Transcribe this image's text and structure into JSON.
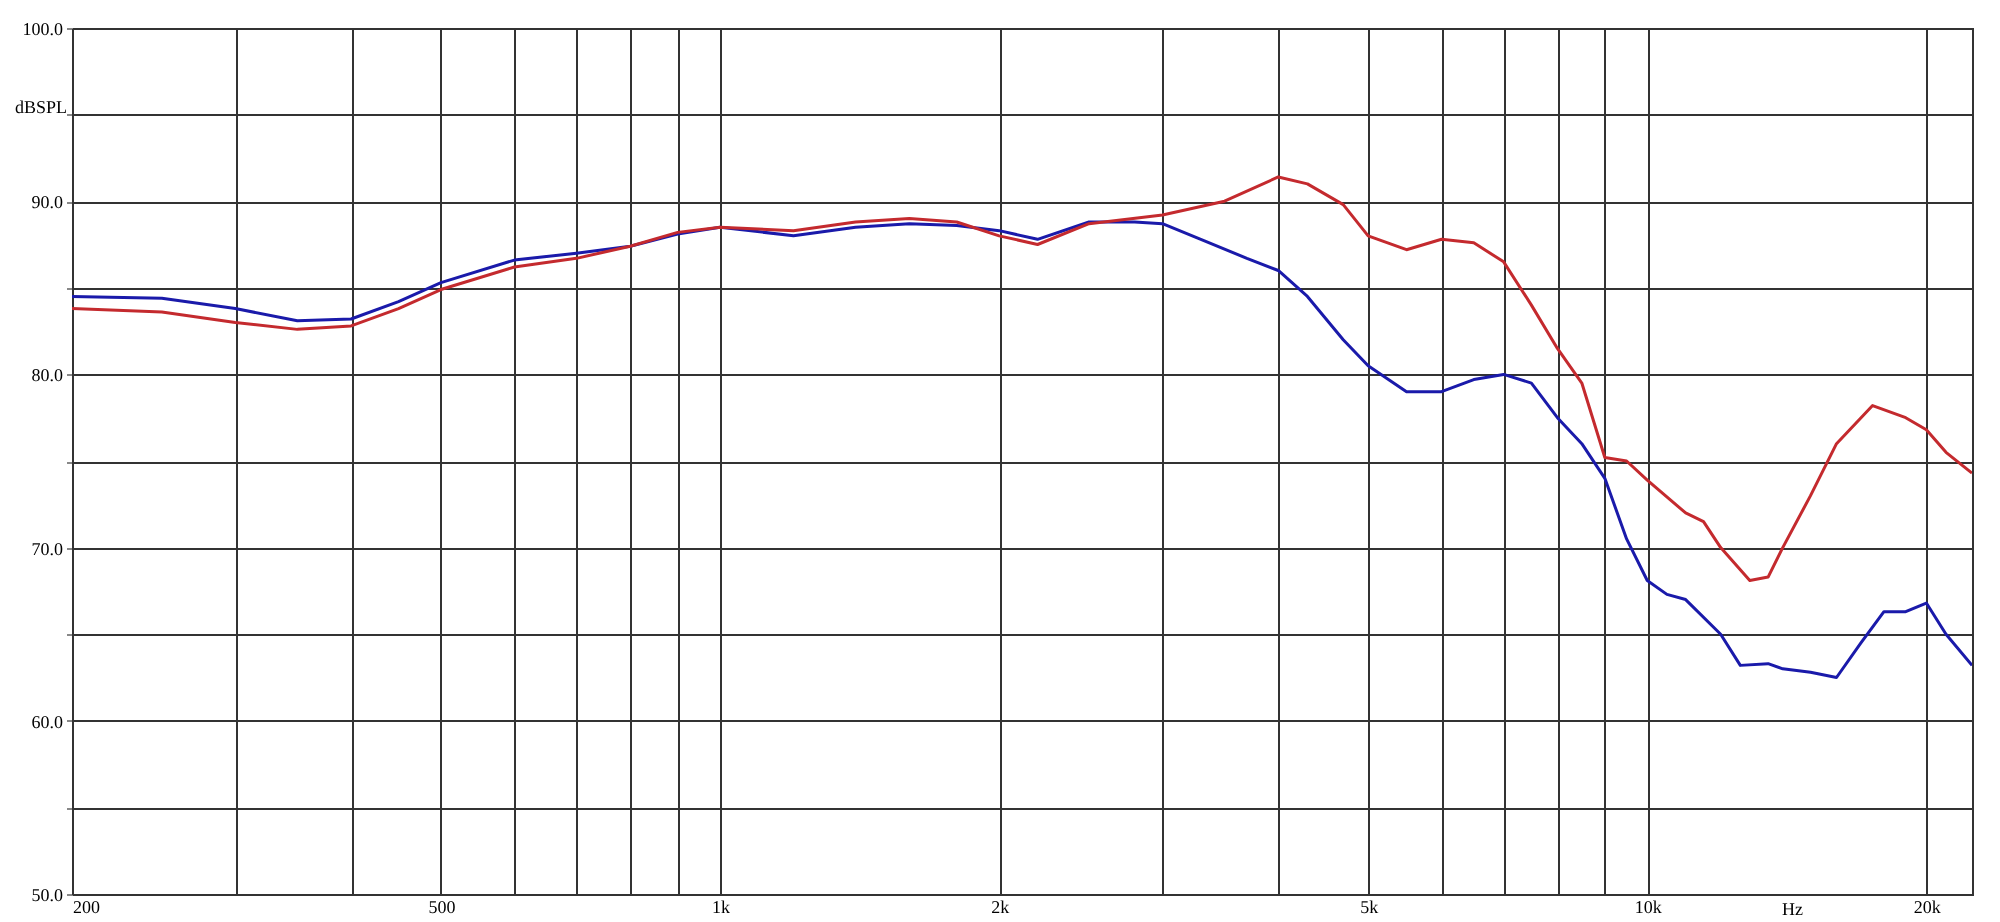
{
  "chart_data": {
    "type": "line",
    "xlabel": "Hz",
    "ylabel": "dBSPL",
    "log": "x",
    "grid": true,
    "marker": "none",
    "line_style": "solid",
    "xlim": [
      200,
      22400
    ],
    "ylim": [
      50,
      100
    ],
    "xticks": [
      200,
      {
        "value": 300,
        "label": null
      },
      {
        "value": 400,
        "label": null
      },
      500,
      {
        "value": 600,
        "label": null
      },
      {
        "value": 700,
        "label": null
      },
      {
        "value": 800,
        "label": null
      },
      {
        "value": 900,
        "label": null
      },
      {
        "value": 1000,
        "label": "1k"
      },
      {
        "value": 2000,
        "label": "2k"
      },
      {
        "value": 3000,
        "label": null
      },
      {
        "value": 4000,
        "label": null
      },
      {
        "value": 5000,
        "label": "5k"
      },
      {
        "value": 6000,
        "label": null
      },
      {
        "value": 7000,
        "label": null
      },
      {
        "value": 8000,
        "label": null
      },
      {
        "value": 9000,
        "label": null
      },
      {
        "value": 10000,
        "label": "10k"
      },
      {
        "value": 20000,
        "label": "20k"
      }
    ],
    "yticks": [
      {
        "value": 50,
        "label": "50.0"
      },
      {
        "value": 55,
        "label": null
      },
      {
        "value": 60,
        "label": "60.0"
      },
      {
        "value": 65,
        "label": null
      },
      {
        "value": 70,
        "label": "70.0"
      },
      {
        "value": 75,
        "label": null
      },
      {
        "value": 80,
        "label": "80.0"
      },
      {
        "value": 85,
        "label": null
      },
      {
        "value": 90,
        "label": "90.0"
      },
      {
        "value": 95,
        "label": null
      },
      {
        "value": 100,
        "label": "100.0"
      }
    ],
    "series": [
      {
        "color": "#1a1aaa",
        "x": [
          200,
          250,
          300,
          350,
          400,
          450,
          500,
          600,
          700,
          800,
          900,
          1000,
          1200,
          1400,
          1600,
          1800,
          2000,
          2200,
          2500,
          2800,
          3000,
          3300,
          3700,
          4000,
          4300,
          4700,
          5000,
          5500,
          6000,
          6500,
          7000,
          7500,
          8000,
          8500,
          9000,
          9500,
          10000,
          10500,
          11000,
          12000,
          12600,
          13500,
          14000,
          15000,
          16000,
          17000,
          18000,
          19000,
          20000,
          21000,
          22400
        ],
        "values": [
          84.5,
          84.4,
          83.8,
          83.1,
          83.2,
          84.2,
          85.3,
          86.6,
          87.0,
          87.4,
          88.1,
          88.5,
          88.0,
          88.5,
          88.7,
          88.6,
          88.3,
          87.8,
          88.8,
          88.8,
          88.7,
          87.8,
          86.7,
          86.0,
          84.5,
          82.0,
          80.5,
          79.0,
          79.0,
          79.7,
          80.0,
          79.5,
          77.5,
          76.0,
          74.0,
          70.5,
          68.1,
          67.3,
          67.0,
          65.0,
          63.2,
          63.3,
          63.0,
          62.8,
          62.5,
          64.5,
          66.3,
          66.3,
          66.8,
          65.0,
          63.2
        ]
      },
      {
        "color": "#c42a2e",
        "x": [
          200,
          250,
          300,
          350,
          400,
          450,
          500,
          600,
          700,
          800,
          900,
          1000,
          1200,
          1400,
          1600,
          1800,
          2000,
          2200,
          2500,
          3000,
          3500,
          4000,
          4300,
          4700,
          5000,
          5500,
          6000,
          6500,
          7000,
          7500,
          8000,
          8500,
          9000,
          9500,
          10000,
          11000,
          11500,
          12000,
          12900,
          13500,
          14000,
          15000,
          16000,
          17500,
          19000,
          20000,
          21000,
          22400
        ],
        "values": [
          83.8,
          83.6,
          83.0,
          82.6,
          82.8,
          83.8,
          84.9,
          86.2,
          86.7,
          87.4,
          88.2,
          88.5,
          88.3,
          88.8,
          89.0,
          88.8,
          88.0,
          87.5,
          88.7,
          89.2,
          90.0,
          91.4,
          91.0,
          89.8,
          88.0,
          87.2,
          87.8,
          87.6,
          86.5,
          84.0,
          81.5,
          79.5,
          75.2,
          75.0,
          73.9,
          72.0,
          71.5,
          70.0,
          68.1,
          68.3,
          70.0,
          73.0,
          76.0,
          78.2,
          77.5,
          76.8,
          75.5,
          74.3
        ]
      }
    ]
  }
}
